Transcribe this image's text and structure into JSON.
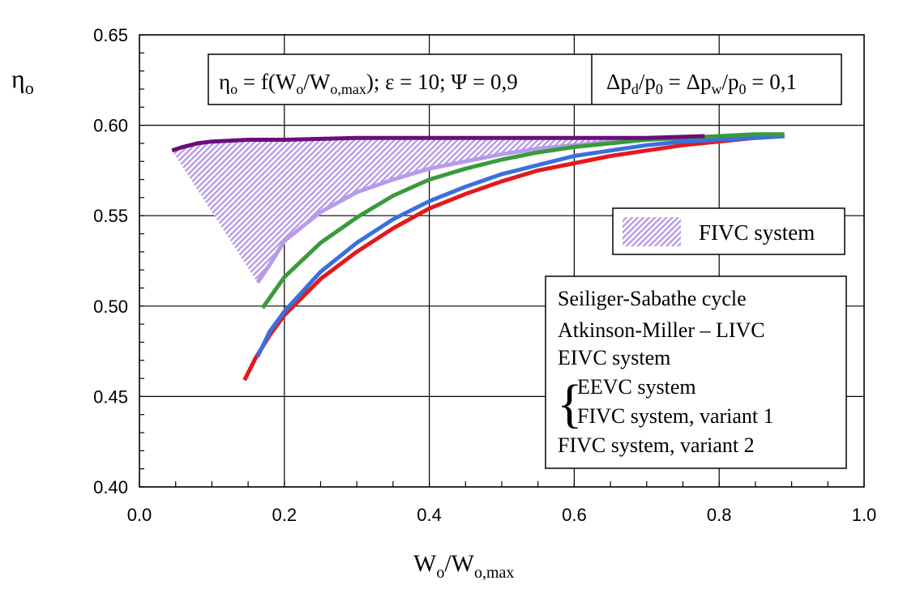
{
  "chart_data": {
    "type": "line",
    "xlabel": "W",
    "xlabel_sub1": "o",
    "xlabel_mid": "/W",
    "xlabel_sub2": "o,max",
    "ylabel": "η",
    "ylabel_sub": "o",
    "xlim": [
      0.0,
      1.0
    ],
    "ylim": [
      0.4,
      0.65
    ],
    "x_ticks": [
      "0.0",
      "0.2",
      "0.4",
      "0.6",
      "0.8",
      "1.0"
    ],
    "y_ticks": [
      "0.40",
      "0.45",
      "0.50",
      "0.55",
      "0.60",
      "0.65"
    ],
    "grid": true,
    "condition_box": {
      "eta": "η",
      "eta_sub": "o",
      "eq_text": " = f(W",
      "w_sub": "o",
      "slash": "/W",
      "wmax_sub": "o,max",
      "rest": "); ε = 10; Ψ = 0,9",
      "dp1": "Δp",
      "dp1_sub": "d",
      "p01": "/p",
      "p01_sub": "0",
      "eq2": " = Δp",
      "dp2_sub": "w",
      "p02": "/p",
      "p02_sub": "0",
      "tail": " = 0,1"
    },
    "shaded_region": {
      "label": "FIVC system",
      "color": "#b79be8"
    },
    "legend": {
      "placement": "bottom-right",
      "brace_char": "{",
      "brace_color": "#6a0e7a"
    },
    "series": [
      {
        "name": "Seiliger-Sabathe cycle",
        "color": "#e3191b",
        "x": [
          0.145,
          0.16,
          0.18,
          0.2,
          0.25,
          0.3,
          0.35,
          0.4,
          0.45,
          0.5,
          0.55,
          0.6,
          0.65,
          0.7,
          0.75,
          0.8,
          0.85,
          0.89
        ],
        "y": [
          0.459,
          0.471,
          0.484,
          0.495,
          0.515,
          0.53,
          0.543,
          0.554,
          0.562,
          0.569,
          0.575,
          0.579,
          0.583,
          0.586,
          0.589,
          0.591,
          0.593,
          0.594
        ]
      },
      {
        "name": "Atkinson-Miller – LIVC",
        "color": "#3a6fe0",
        "x": [
          0.163,
          0.18,
          0.2,
          0.25,
          0.3,
          0.35,
          0.4,
          0.45,
          0.5,
          0.55,
          0.6,
          0.65,
          0.7,
          0.75,
          0.8,
          0.85,
          0.89
        ],
        "y": [
          0.472,
          0.486,
          0.497,
          0.519,
          0.535,
          0.548,
          0.558,
          0.566,
          0.573,
          0.578,
          0.583,
          0.586,
          0.589,
          0.591,
          0.592,
          0.593,
          0.594
        ]
      },
      {
        "name": "EIVC system",
        "color": "#3a9a3a",
        "x": [
          0.17,
          0.2,
          0.25,
          0.3,
          0.35,
          0.4,
          0.45,
          0.5,
          0.55,
          0.6,
          0.65,
          0.7,
          0.75,
          0.8,
          0.85,
          0.89
        ],
        "y": [
          0.499,
          0.516,
          0.535,
          0.549,
          0.561,
          0.57,
          0.576,
          0.581,
          0.585,
          0.588,
          0.59,
          0.592,
          0.593,
          0.594,
          0.595,
          0.595
        ]
      },
      {
        "name": "EEVC system",
        "color": "#6a0e7a",
        "x": [
          0.045,
          0.06,
          0.08,
          0.1,
          0.15,
          0.2,
          0.3,
          0.4,
          0.5,
          0.6,
          0.7,
          0.78
        ],
        "y": [
          0.586,
          0.588,
          0.59,
          0.591,
          0.592,
          0.592,
          0.593,
          0.593,
          0.593,
          0.593,
          0.593,
          0.594
        ]
      },
      {
        "name": "FIVC system, variant 1",
        "color": "#6a0e7a",
        "x": [
          0.045,
          0.06,
          0.08,
          0.1,
          0.15,
          0.2,
          0.3,
          0.4,
          0.5,
          0.6,
          0.7,
          0.78
        ],
        "y": [
          0.586,
          0.588,
          0.59,
          0.591,
          0.592,
          0.592,
          0.593,
          0.593,
          0.593,
          0.593,
          0.593,
          0.594
        ]
      },
      {
        "name": "FIVC system, variant 2",
        "color": "#b79be8",
        "x": [
          0.163,
          0.18,
          0.2,
          0.25,
          0.3,
          0.35,
          0.4,
          0.45,
          0.5,
          0.55,
          0.6,
          0.65,
          0.7,
          0.75,
          0.78
        ],
        "y": [
          0.513,
          0.523,
          0.536,
          0.552,
          0.563,
          0.57,
          0.576,
          0.58,
          0.584,
          0.587,
          0.589,
          0.591,
          0.592,
          0.593,
          0.594
        ]
      }
    ]
  }
}
